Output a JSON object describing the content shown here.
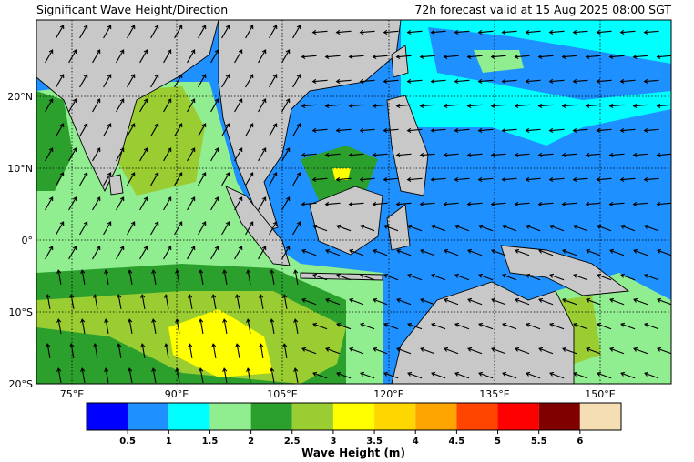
{
  "header": {
    "title": "Significant Wave Height/Direction",
    "valid": "72h forecast valid at 15 Aug 2025 08:00 SGT"
  },
  "map": {
    "lat_labels": [
      "20°N",
      "10°N",
      "0°",
      "10°S",
      "20°S"
    ],
    "lon_labels": [
      "75°E",
      "90°E",
      "105°E",
      "120°E",
      "135°E",
      "150°E"
    ]
  },
  "colorbar": {
    "colors": [
      "#0000ff",
      "#1e90ff",
      "#00ffff",
      "#90ee90",
      "#2ca02c",
      "#9acd32",
      "#ffff00",
      "#ffd700",
      "#ffa500",
      "#ff4500",
      "#ff0000",
      "#800000",
      "#f5deb3"
    ],
    "ticks": [
      0.5,
      1,
      1.5,
      2,
      2.5,
      3,
      3.5,
      4,
      4.5,
      5,
      5.5,
      6
    ],
    "label": "Wave Height (m)"
  }
}
